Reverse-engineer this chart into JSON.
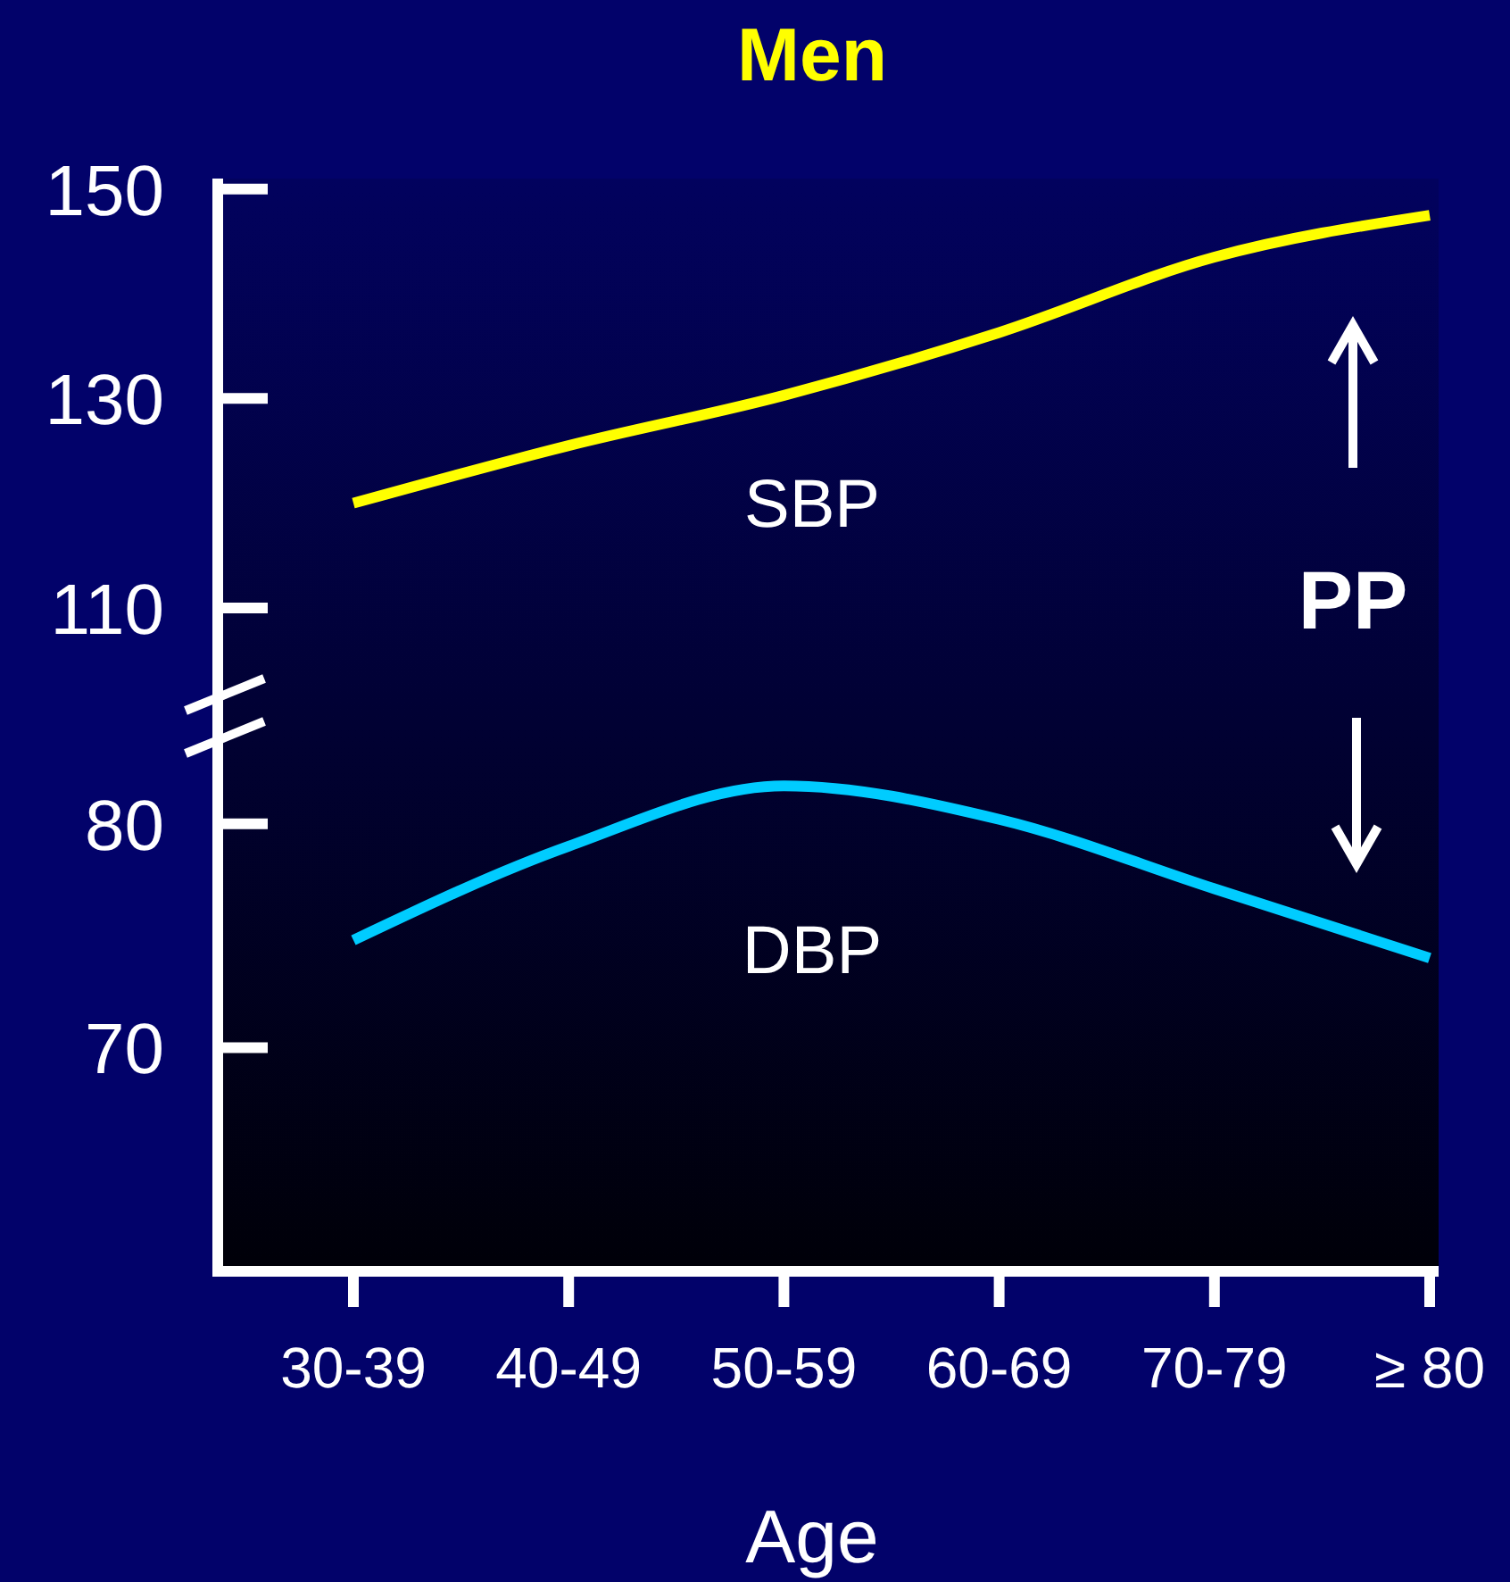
{
  "chart_data": [
    {
      "type": "line",
      "title": "Men",
      "categories": [
        null,
        null,
        null,
        null,
        null,
        null
      ],
      "ylim": [
        99,
        151
      ],
      "yticks": [
        110,
        130,
        150
      ],
      "tick_labels": "y",
      "annotations": [
        "PP"
      ],
      "series": [
        {
          "name": "SBP",
          "color": "#ffff00",
          "values": [
            120,
            125.5,
            130.3,
            136.3,
            143.5,
            147.5
          ]
        }
      ]
    },
    {
      "type": "line",
      "xlabel": "Age",
      "categories": [
        "30-39",
        "40-49",
        "50-59",
        "60-69",
        "70-79",
        "≥ 80"
      ],
      "ylim": [
        60,
        84.5
      ],
      "yticks": [
        70,
        80
      ],
      "series": [
        {
          "name": "DBP",
          "color": "#00ccff",
          "values": [
            74.8,
            79,
            81.7,
            80.2,
            77.1,
            74.0
          ]
        }
      ]
    }
  ]
}
